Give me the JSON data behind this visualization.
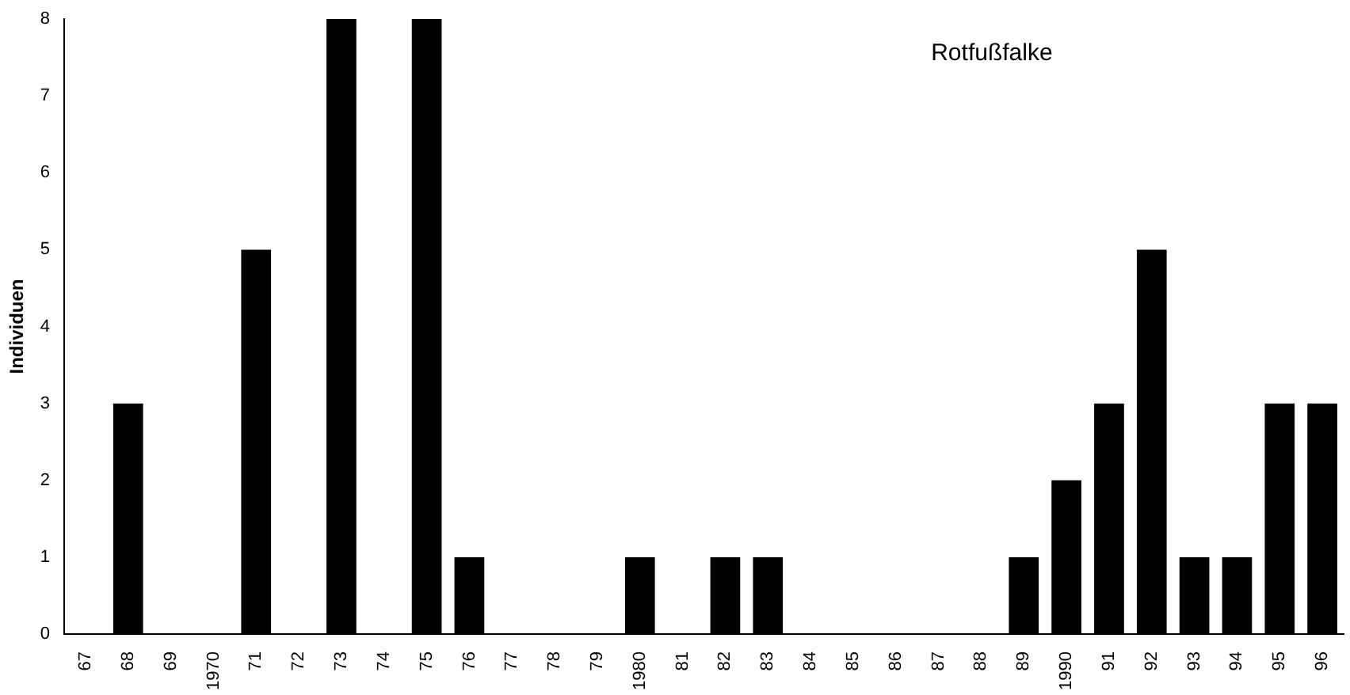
{
  "chart_data": {
    "type": "bar",
    "title": "Rotfußfalke",
    "ylabel": "Individuen",
    "categories": [
      "67",
      "68",
      "69",
      "1970",
      "71",
      "72",
      "73",
      "74",
      "75",
      "76",
      "77",
      "78",
      "79",
      "1980",
      "81",
      "82",
      "83",
      "84",
      "85",
      "86",
      "87",
      "88",
      "89",
      "1990",
      "91",
      "92",
      "93",
      "94",
      "95",
      "96"
    ],
    "values": [
      0,
      3,
      0,
      0,
      5,
      0,
      8,
      0,
      8,
      1,
      0,
      0,
      0,
      1,
      0,
      1,
      1,
      0,
      0,
      0,
      0,
      0,
      1,
      2,
      3,
      5,
      1,
      1,
      3,
      3
    ],
    "color": "#000000",
    "ylim": [
      0,
      8
    ],
    "yticks": [
      0,
      1,
      2,
      3,
      4,
      5,
      6,
      7,
      8
    ],
    "grid": false,
    "legend": false
  }
}
